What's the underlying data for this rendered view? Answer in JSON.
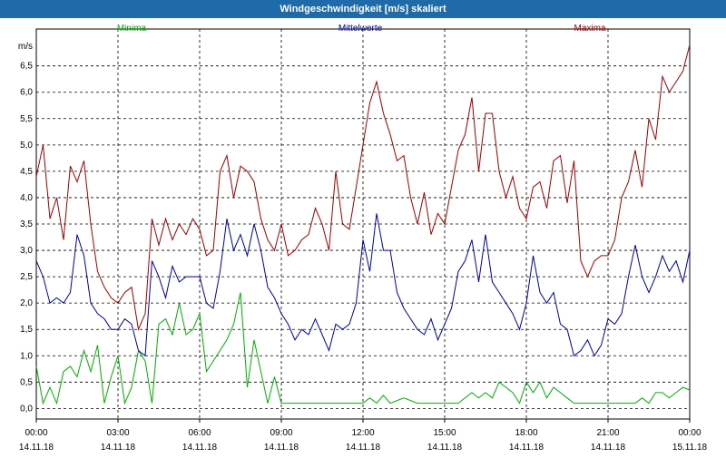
{
  "window": {
    "title": "Windgeschwindigkeit [m/s] skaliert"
  },
  "chart_data": {
    "type": "line",
    "ylabel": "m/s",
    "ylim": [
      -0.2,
      7.2
    ],
    "y_ticks": [
      "0,0",
      "0,5",
      "1,0",
      "1,5",
      "2,0",
      "2,5",
      "3,0",
      "3,5",
      "4,0",
      "4,5",
      "5,0",
      "5,5",
      "6,0",
      "6,5"
    ],
    "y_tick_values": [
      0,
      0.5,
      1,
      1.5,
      2,
      2.5,
      3,
      3.5,
      4,
      4.5,
      5,
      5.5,
      6,
      6.5
    ],
    "xlim": [
      0,
      24
    ],
    "x_ticks": [
      {
        "hour": 0,
        "time": "00:00",
        "date": "14.11.18"
      },
      {
        "hour": 3,
        "time": "03:00",
        "date": "14.11.18"
      },
      {
        "hour": 6,
        "time": "06:00",
        "date": "14.11.18"
      },
      {
        "hour": 9,
        "time": "09:00",
        "date": "14.11.18"
      },
      {
        "hour": 12,
        "time": "12:00",
        "date": "14.11.18"
      },
      {
        "hour": 15,
        "time": "15:00",
        "date": "14.11.18"
      },
      {
        "hour": 18,
        "time": "18:00",
        "date": "14.11.18"
      },
      {
        "hour": 21,
        "time": "21:00",
        "date": "14.11.18"
      },
      {
        "hour": 24,
        "time": "00:00",
        "date": "15.11.18"
      }
    ],
    "grid": true,
    "legend": "top",
    "series": [
      {
        "name": "Minima",
        "color": "#00b000",
        "x": [
          0,
          0.25,
          0.5,
          0.75,
          1,
          1.25,
          1.5,
          1.75,
          2,
          2.25,
          2.5,
          2.75,
          3,
          3.25,
          3.5,
          3.75,
          4,
          4.25,
          4.5,
          4.75,
          5,
          5.25,
          5.5,
          5.75,
          6,
          6.25,
          6.5,
          6.75,
          7,
          7.25,
          7.5,
          7.75,
          8,
          8.25,
          8.5,
          8.75,
          9,
          9.5,
          10,
          10.5,
          11,
          11.5,
          12,
          12.25,
          12.5,
          12.75,
          13,
          13.5,
          14,
          14.5,
          15,
          15.5,
          16,
          16.25,
          16.5,
          16.75,
          17,
          17.25,
          17.5,
          17.75,
          18,
          18.25,
          18.5,
          18.75,
          19,
          19.25,
          19.5,
          19.75,
          20,
          20.5,
          21,
          21.5,
          22,
          22.25,
          22.5,
          22.75,
          23,
          23.25,
          23.5,
          23.75,
          24
        ],
        "y": [
          0.8,
          0.1,
          0.4,
          0.1,
          0.7,
          0.8,
          0.6,
          1.1,
          0.7,
          1.2,
          0.1,
          0.6,
          1.0,
          0.1,
          0.4,
          1.1,
          0.9,
          0.1,
          1.6,
          1.7,
          1.4,
          2.0,
          1.4,
          1.5,
          1.8,
          0.7,
          0.9,
          1.1,
          1.3,
          1.6,
          2.2,
          0.4,
          1.3,
          0.7,
          0.1,
          0.6,
          0.1,
          0.1,
          0.1,
          0.1,
          0.1,
          0.1,
          0.1,
          0.2,
          0.1,
          0.25,
          0.1,
          0.2,
          0.1,
          0.1,
          0.1,
          0.1,
          0.3,
          0.2,
          0.3,
          0.2,
          0.5,
          0.4,
          0.3,
          0.1,
          0.5,
          0.3,
          0.5,
          0.2,
          0.4,
          0.3,
          0.2,
          0.1,
          0.1,
          0.1,
          0.1,
          0.1,
          0.1,
          0.2,
          0.1,
          0.3,
          0.3,
          0.2,
          0.3,
          0.4,
          0.35
        ]
      },
      {
        "name": "Mittelwerte",
        "color": "#0000a0",
        "x": [
          0,
          0.25,
          0.5,
          0.75,
          1,
          1.25,
          1.5,
          1.75,
          2,
          2.25,
          2.5,
          2.75,
          3,
          3.25,
          3.5,
          3.75,
          4,
          4.25,
          4.5,
          4.75,
          5,
          5.25,
          5.5,
          5.75,
          6,
          6.25,
          6.5,
          6.75,
          7,
          7.25,
          7.5,
          7.75,
          8,
          8.25,
          8.5,
          8.75,
          9,
          9.25,
          9.5,
          9.75,
          10,
          10.25,
          10.5,
          10.75,
          11,
          11.25,
          11.5,
          11.75,
          12,
          12.25,
          12.5,
          12.75,
          13,
          13.25,
          13.5,
          13.75,
          14,
          14.25,
          14.5,
          14.75,
          15,
          15.25,
          15.5,
          15.75,
          16,
          16.25,
          16.5,
          16.75,
          17,
          17.25,
          17.5,
          17.75,
          18,
          18.25,
          18.5,
          18.75,
          19,
          19.25,
          19.5,
          19.75,
          20,
          20.25,
          20.5,
          20.75,
          21,
          21.25,
          21.5,
          21.75,
          22,
          22.25,
          22.5,
          22.75,
          23,
          23.25,
          23.5,
          23.75,
          24
        ],
        "y": [
          2.8,
          2.5,
          2.0,
          2.1,
          2.0,
          2.2,
          3.3,
          2.9,
          2.0,
          1.8,
          1.7,
          1.5,
          1.5,
          1.7,
          1.6,
          1.1,
          1.0,
          2.8,
          2.5,
          2.1,
          2.7,
          2.4,
          2.5,
          2.5,
          2.5,
          2.0,
          1.9,
          2.6,
          3.6,
          3.0,
          3.3,
          2.9,
          3.5,
          3.0,
          2.3,
          2.1,
          1.8,
          1.6,
          1.3,
          1.5,
          1.4,
          1.7,
          1.4,
          1.1,
          1.6,
          1.5,
          1.6,
          2.0,
          3.2,
          2.6,
          3.7,
          3.0,
          3.0,
          2.2,
          1.9,
          1.7,
          1.5,
          1.4,
          1.7,
          1.3,
          1.6,
          1.9,
          2.6,
          2.8,
          3.2,
          2.4,
          3.3,
          2.4,
          2.2,
          2.0,
          1.8,
          1.5,
          2.0,
          2.9,
          2.2,
          2.0,
          2.2,
          1.6,
          1.5,
          1.0,
          1.1,
          1.3,
          1.0,
          1.2,
          1.7,
          1.6,
          1.8,
          2.5,
          3.1,
          2.5,
          2.2,
          2.5,
          2.9,
          2.6,
          2.8,
          2.4,
          3.0
        ]
      },
      {
        "name": "Maxima",
        "color": "#a00000",
        "x": [
          0,
          0.25,
          0.5,
          0.75,
          1,
          1.25,
          1.5,
          1.75,
          2,
          2.25,
          2.5,
          2.75,
          3,
          3.25,
          3.5,
          3.75,
          4,
          4.25,
          4.5,
          4.75,
          5,
          5.25,
          5.5,
          5.75,
          6,
          6.25,
          6.5,
          6.75,
          7,
          7.25,
          7.5,
          7.75,
          8,
          8.25,
          8.5,
          8.75,
          9,
          9.25,
          9.5,
          9.75,
          10,
          10.25,
          10.5,
          10.75,
          11,
          11.25,
          11.5,
          11.75,
          12,
          12.25,
          12.5,
          12.75,
          13,
          13.25,
          13.5,
          13.75,
          14,
          14.25,
          14.5,
          14.75,
          15,
          15.25,
          15.5,
          15.75,
          16,
          16.25,
          16.5,
          16.75,
          17,
          17.25,
          17.5,
          17.75,
          18,
          18.25,
          18.5,
          18.75,
          19,
          19.25,
          19.5,
          19.75,
          20,
          20.25,
          20.5,
          20.75,
          21,
          21.25,
          21.5,
          21.75,
          22,
          22.25,
          22.5,
          22.75,
          23,
          23.25,
          23.5,
          23.75,
          24
        ],
        "y": [
          4.4,
          5.0,
          3.6,
          4.0,
          3.2,
          4.6,
          4.3,
          4.7,
          3.5,
          2.6,
          2.3,
          2.1,
          2.0,
          2.2,
          2.3,
          1.5,
          1.8,
          3.6,
          3.1,
          3.6,
          3.2,
          3.5,
          3.3,
          3.6,
          3.4,
          2.9,
          3.0,
          4.5,
          4.8,
          4.0,
          4.6,
          4.5,
          4.3,
          3.6,
          3.2,
          3.0,
          3.5,
          2.9,
          3.0,
          3.2,
          3.3,
          3.8,
          3.5,
          3.0,
          4.5,
          3.5,
          3.4,
          4.2,
          5.0,
          5.8,
          6.2,
          5.6,
          5.2,
          4.7,
          4.8,
          4.0,
          3.5,
          4.1,
          3.3,
          3.7,
          3.5,
          4.2,
          4.9,
          5.2,
          5.9,
          4.5,
          5.6,
          5.6,
          4.5,
          4.0,
          4.4,
          3.8,
          3.6,
          4.2,
          4.3,
          3.8,
          4.7,
          4.8,
          3.9,
          4.7,
          2.8,
          2.5,
          2.8,
          2.9,
          2.9,
          3.2,
          4.0,
          4.3,
          4.9,
          4.2,
          5.5,
          5.1,
          6.3,
          6.0,
          6.2,
          6.4,
          6.9
        ]
      }
    ]
  }
}
